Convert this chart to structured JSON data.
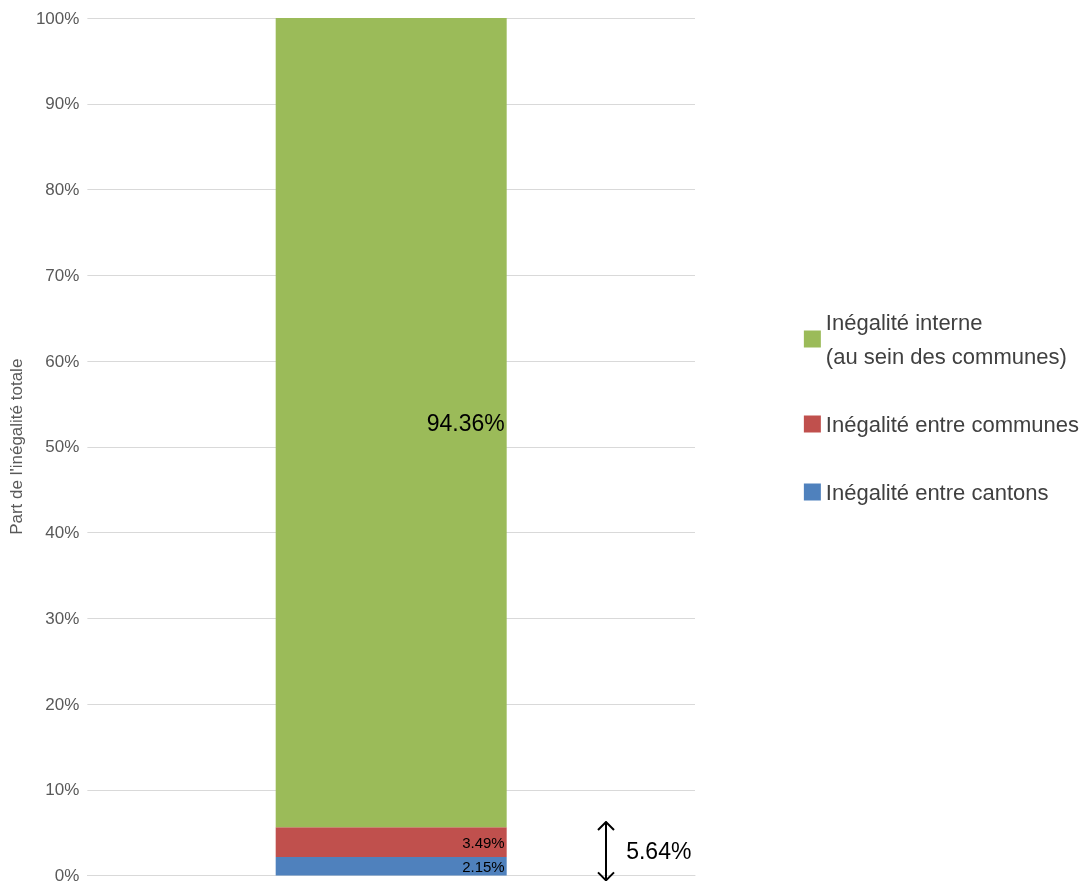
{
  "chart_data": {
    "type": "bar",
    "stacked": true,
    "ylabel": "Part de l'inégalité totale",
    "categories": [
      null
    ],
    "series": [
      {
        "name": "Inégalité entre cantons",
        "color": "#4f81bd",
        "values": [
          2.15
        ],
        "value_labels": [
          "2.15%"
        ]
      },
      {
        "name": "Inégalité entre communes",
        "color": "#c0504d",
        "values": [
          3.49
        ],
        "value_labels": [
          "3.49%"
        ]
      },
      {
        "name": "Inégalité interne (au sein des communes)",
        "color": "#9bbb59",
        "values": [
          94.36
        ],
        "value_labels": [
          "94.36%"
        ]
      }
    ],
    "ylim": [
      0,
      100
    ],
    "yticks": [
      {
        "value": 0,
        "label": "0%"
      },
      {
        "value": 10,
        "label": "10%"
      },
      {
        "value": 20,
        "label": "20%"
      },
      {
        "value": 30,
        "label": "30%"
      },
      {
        "value": 40,
        "label": "40%"
      },
      {
        "value": 50,
        "label": "50%"
      },
      {
        "value": 60,
        "label": "60%"
      },
      {
        "value": 70,
        "label": "70%"
      },
      {
        "value": 80,
        "label": "80%"
      },
      {
        "value": 90,
        "label": "90%"
      },
      {
        "value": 100,
        "label": "100%"
      }
    ],
    "grid": "y",
    "legend": "right",
    "annotations": [
      "5.64%"
    ]
  }
}
